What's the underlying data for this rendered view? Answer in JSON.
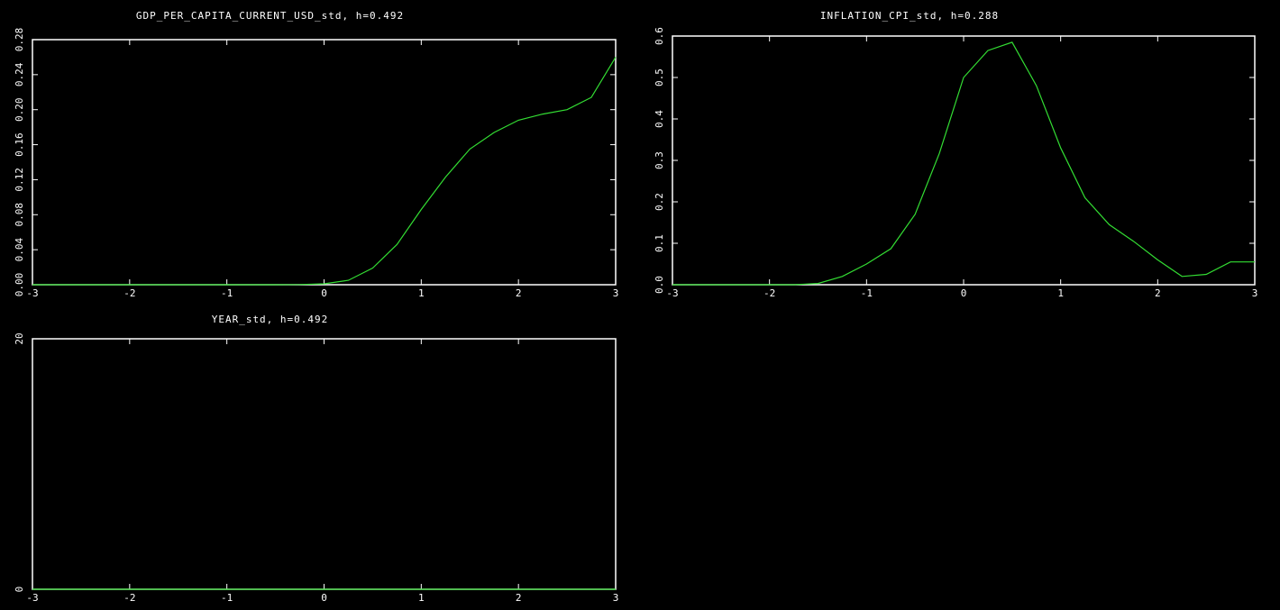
{
  "chart_data": [
    {
      "type": "line",
      "title": "GDP_PER_CAPITA_CURRENT_USD_std, h=0.492",
      "x": [
        -3,
        -2.75,
        -2.5,
        -2.25,
        -2,
        -1.75,
        -1.5,
        -1.25,
        -1,
        -0.75,
        -0.5,
        -0.25,
        0,
        0.25,
        0.5,
        0.75,
        1,
        1.25,
        1.5,
        1.75,
        2,
        2.25,
        2.5,
        2.75,
        3
      ],
      "values": [
        0,
        0,
        0,
        0,
        0,
        0,
        0,
        0,
        0,
        0,
        0,
        0.0002,
        0.001,
        0.005,
        0.019,
        0.046,
        0.086,
        0.123,
        0.155,
        0.174,
        0.188,
        0.195,
        0.2,
        0.214,
        0.26
      ],
      "color": "#33dd33",
      "xlim": [
        -3,
        3
      ],
      "xticks": [
        -3,
        -2,
        -1,
        0,
        1,
        2,
        3
      ],
      "ylim": [
        0,
        0.28
      ],
      "yticks": [
        {
          "value": 0,
          "label": "0.00"
        },
        0.04,
        0.08,
        0.12,
        0.16,
        {
          "value": 0.2,
          "label": "0.20"
        },
        0.24,
        0.28
      ]
    },
    {
      "type": "line",
      "title": "INFLATION_CPI_std, h=0.288",
      "x": [
        -3,
        -2.75,
        -2.5,
        -2.25,
        -2,
        -1.75,
        -1.5,
        -1.25,
        -1,
        -0.75,
        -0.5,
        -0.25,
        0,
        0.25,
        0.5,
        0.75,
        1,
        1.25,
        1.5,
        1.75,
        2,
        2.25,
        2.5,
        2.75,
        3
      ],
      "values": [
        0,
        0,
        0,
        0,
        0,
        0,
        0.003,
        0.02,
        0.05,
        0.087,
        0.17,
        0.317,
        0.5,
        0.565,
        0.585,
        0.48,
        0.33,
        0.21,
        0.145,
        0.105,
        0.06,
        0.02,
        0.025,
        0.055,
        0.055
      ],
      "color": "#33dd33",
      "xlim": [
        -3,
        3
      ],
      "xticks": [
        -3,
        -2,
        -1,
        0,
        1,
        2,
        3
      ],
      "ylim": [
        0,
        0.6
      ],
      "yticks": [
        {
          "value": 0,
          "label": "0.0"
        },
        0.1,
        0.2,
        0.3,
        0.4,
        0.5,
        0.6
      ]
    },
    {
      "type": "line",
      "title": "YEAR_std, h=0.492",
      "x": [
        -3,
        3
      ],
      "values": [
        0,
        0
      ],
      "color": "#33dd33",
      "xlim": [
        -3,
        3
      ],
      "xticks": [
        -3,
        -2,
        -1,
        0,
        1,
        2,
        3
      ],
      "ylim": [
        0,
        20
      ],
      "yticks": [
        0,
        20
      ]
    }
  ]
}
